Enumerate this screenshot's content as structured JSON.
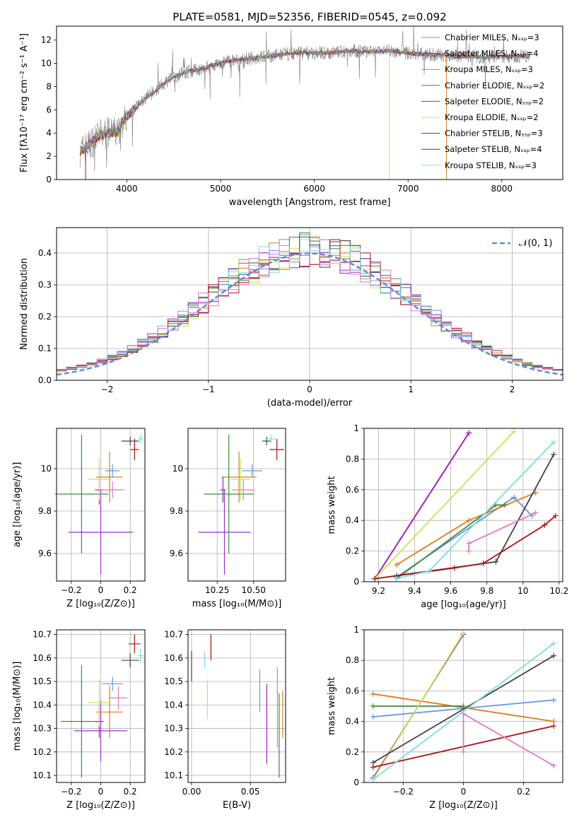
{
  "title": "PLATE=0581, MJD=52356, FIBERID=0545, z=0.092",
  "colors": {
    "Chabrier MILES": "#6495ed",
    "Salpeter MILES": "#9932cc",
    "Kroupa MILES": "#e07b1c",
    "Chabrier ELODIE": "#3c8c3c",
    "Salpeter ELODIE": "#a020c0",
    "Kroupa ELODIE": "#c8e650",
    "Chabrier STELIB": "#444444",
    "Salpeter STELIB": "#b01010",
    "Kroupa STELIB": "#7fdbe0",
    "data": "#808080",
    "pink": "#e377c2",
    "normal": "#5b8ddb"
  },
  "chart_data": [
    {
      "id": "spectrum",
      "type": "line",
      "xlabel": "wavelength [Angstrom, rest frame]",
      "ylabel": "Flux [fλ10⁻¹⁷ erg cm⁻² s⁻¹ A⁻¹]",
      "xlim": [
        3250,
        8650
      ],
      "ylim": [
        0,
        13.2
      ],
      "xticks": [
        4000,
        5000,
        6000,
        7000,
        8000
      ],
      "yticks": [
        0,
        2,
        4,
        6,
        8,
        10,
        12
      ],
      "legend": [
        "Chabrier MILES, Nₛₛₚ=3",
        "Salpeter MILES, Nₛₛₚ=4",
        "Kroupa MILES, Nₛₛₚ=3",
        "Chabrier ELODIE, Nₛₛₚ=2",
        "Salpeter ELODIE, Nₛₛₚ=2",
        "Kroupa ELODIE, Nₛₛₚ=2",
        "Chabrier STELIB, Nₛₛₚ=3",
        "Salpeter STELIB, Nₛₛₚ=4",
        "Kroupa STELIB, Nₛₛₚ=3"
      ],
      "legend_loc": "right",
      "envelope": [
        [
          3500,
          2.4
        ],
        [
          3600,
          3.0
        ],
        [
          3700,
          3.8
        ],
        [
          3800,
          4.0
        ],
        [
          3900,
          4.1
        ],
        [
          4000,
          5.5
        ],
        [
          4100,
          6.2
        ],
        [
          4200,
          7.0
        ],
        [
          4300,
          7.6
        ],
        [
          4400,
          8.3
        ],
        [
          4500,
          8.8
        ],
        [
          4600,
          9.2
        ],
        [
          4700,
          9.4
        ],
        [
          4800,
          9.5
        ],
        [
          4900,
          9.8
        ],
        [
          5000,
          10.0
        ],
        [
          5100,
          10.2
        ],
        [
          5200,
          10.3
        ],
        [
          5300,
          10.4
        ],
        [
          5400,
          10.5
        ],
        [
          5500,
          10.6
        ],
        [
          5600,
          10.7
        ],
        [
          5700,
          10.8
        ],
        [
          5800,
          10.9
        ],
        [
          5900,
          10.9
        ],
        [
          6000,
          10.9
        ],
        [
          6100,
          10.9
        ],
        [
          6200,
          10.9
        ],
        [
          6300,
          11.0
        ],
        [
          6400,
          11.1
        ],
        [
          6500,
          11.0
        ],
        [
          6600,
          11.0
        ],
        [
          6700,
          11.0
        ],
        [
          6800,
          11.1
        ],
        [
          6900,
          11.0
        ],
        [
          7000,
          10.9
        ],
        [
          7100,
          10.8
        ],
        [
          7200,
          10.8
        ],
        [
          7300,
          10.7
        ],
        [
          7400,
          10.7
        ],
        [
          7500,
          10.6
        ],
        [
          7600,
          10.6
        ],
        [
          7700,
          10.6
        ],
        [
          7800,
          10.5
        ],
        [
          7900,
          10.6
        ],
        [
          8000,
          10.6
        ],
        [
          8100,
          10.6
        ],
        [
          8200,
          10.6
        ],
        [
          8300,
          10.6
        ]
      ]
    },
    {
      "id": "residuals",
      "type": "line",
      "xlabel": "(data-model)/error",
      "ylabel": "Normed distribution",
      "xlim": [
        -2.5,
        2.5
      ],
      "ylim": [
        0,
        0.48
      ],
      "xticks": [
        -2,
        -1,
        0,
        1,
        2
      ],
      "yticks": [
        0.0,
        0.1,
        0.2,
        0.3,
        0.4
      ],
      "series": [
        {
          "name": "𝒩(0, 1)",
          "style": "dashed"
        }
      ],
      "legend_loc": "upper right"
    },
    {
      "id": "age_vs_Z",
      "type": "scatter",
      "xlabel": "Z [log₁₀(Z/Z⊙)]",
      "ylabel": "age  [log₁₀(age/yr)]",
      "xlim": [
        -0.3,
        0.3
      ],
      "ylim": [
        9.47,
        10.19
      ],
      "xticks": [
        -0.2,
        0.0,
        0.2
      ],
      "yticks": [
        9.6,
        9.8,
        10.0
      ],
      "points": [
        {
          "m": "Chabrier MILES",
          "x": 0.08,
          "y": 9.99,
          "xe": 0.05,
          "ye": 0.03
        },
        {
          "m": "Salpeter MILES",
          "x": 0.0,
          "y": 9.7,
          "xe": 0.22,
          "ye": 0.2
        },
        {
          "m": "Kroupa MILES",
          "x": 0.06,
          "y": 9.96,
          "xe": 0.09,
          "ye": 0.12
        },
        {
          "m": "Chabrier ELODIE",
          "x": -0.13,
          "y": 9.88,
          "xe": 0.18,
          "ye": 0.28
        },
        {
          "m": "Salpeter ELODIE",
          "x": -0.01,
          "y": 9.9,
          "xe": 0.03,
          "ye": 0.07
        },
        {
          "m": "Kroupa ELODIE",
          "x": -0.01,
          "y": 9.95,
          "xe": 0.08,
          "ye": 0.1
        },
        {
          "m": "Chabrier STELIB",
          "x": 0.2,
          "y": 10.13,
          "xe": 0.06,
          "ye": 0.02
        },
        {
          "m": "Salpeter STELIB",
          "x": 0.23,
          "y": 10.09,
          "xe": 0.03,
          "ye": 0.05
        },
        {
          "m": "Kroupa STELIB",
          "x": 0.27,
          "y": 10.14,
          "xe": 0.02,
          "ye": 0.02
        },
        {
          "m": "pink",
          "x": 0.08,
          "y": 9.9,
          "xe": 0.08,
          "ye": 0.04
        }
      ]
    },
    {
      "id": "age_vs_mass",
      "type": "scatter",
      "xlabel": "mass [log₁₀(M/M⊙)]",
      "ylabel": "",
      "xlim": [
        10.05,
        10.72
      ],
      "ylim": [
        9.47,
        10.19
      ],
      "xticks": [
        10.25,
        10.5
      ],
      "xticklabels": [
        "10.25",
        "10.50"
      ],
      "yticks": [
        9.6,
        9.8,
        10.0
      ],
      "points": [
        {
          "m": "Chabrier MILES",
          "x": 10.49,
          "y": 9.99,
          "xe": 0.07,
          "ye": 0.03
        },
        {
          "m": "Salpeter MILES",
          "x": 10.3,
          "y": 9.7,
          "xe": 0.18,
          "ye": 0.2
        },
        {
          "m": "Kroupa MILES",
          "x": 10.4,
          "y": 9.96,
          "xe": 0.12,
          "ye": 0.12
        },
        {
          "m": "Chabrier ELODIE",
          "x": 10.33,
          "y": 9.88,
          "xe": 0.17,
          "ye": 0.28
        },
        {
          "m": "Salpeter ELODIE",
          "x": 10.29,
          "y": 9.9,
          "xe": 0.02,
          "ye": 0.06
        },
        {
          "m": "Kroupa ELODIE",
          "x": 10.41,
          "y": 9.95,
          "xe": 0.07,
          "ye": 0.1
        },
        {
          "m": "Chabrier STELIB",
          "x": 10.59,
          "y": 10.13,
          "xe": 0.03,
          "ye": 0.02
        },
        {
          "m": "Salpeter STELIB",
          "x": 10.66,
          "y": 10.09,
          "xe": 0.05,
          "ye": 0.05
        },
        {
          "m": "Kroupa STELIB",
          "x": 10.62,
          "y": 10.14,
          "xe": 0.04,
          "ye": 0.02
        },
        {
          "m": "pink",
          "x": 10.43,
          "y": 9.9,
          "xe": 0.08,
          "ye": 0.05
        }
      ]
    },
    {
      "id": "mass_weight_vs_age",
      "type": "line",
      "xlabel": "age  [log₁₀(age/yr)]",
      "ylabel": "mass weight",
      "xlim": [
        9.12,
        10.22
      ],
      "ylim": [
        0,
        1.0
      ],
      "xticks": [
        9.2,
        9.4,
        9.6,
        9.8,
        10.0,
        10.2
      ],
      "yticks": [
        0.0,
        0.2,
        0.4,
        0.6,
        0.8,
        1.0
      ],
      "series": [
        {
          "m": "Chabrier MILES",
          "pts": [
            [
              9.3,
              0.03
            ],
            [
              9.95,
              0.55
            ],
            [
              10.05,
              0.43
            ]
          ]
        },
        {
          "m": "Salpeter MILES",
          "pts": [
            [
              9.18,
              0.02
            ],
            [
              9.7,
              0.97
            ]
          ]
        },
        {
          "m": "Kroupa MILES",
          "pts": [
            [
              9.3,
              0.11
            ],
            [
              9.7,
              0.4
            ],
            [
              10.07,
              0.58
            ]
          ]
        },
        {
          "m": "Chabrier ELODIE",
          "pts": [
            [
              9.3,
              0.02
            ],
            [
              9.85,
              0.5
            ],
            [
              9.9,
              0.5
            ]
          ]
        },
        {
          "m": "Salpeter ELODIE",
          "pts": [
            [
              9.18,
              0.02
            ],
            [
              9.7,
              0.97
            ]
          ]
        },
        {
          "m": "Kroupa ELODIE",
          "pts": [
            [
              9.18,
              0.02
            ],
            [
              9.95,
              0.98
            ]
          ]
        },
        {
          "m": "Chabrier STELIB",
          "pts": [
            [
              9.3,
              0.04
            ],
            [
              9.85,
              0.13
            ],
            [
              10.17,
              0.83
            ]
          ]
        },
        {
          "m": "Salpeter STELIB",
          "pts": [
            [
              9.18,
              0.02
            ],
            [
              9.62,
              0.09
            ],
            [
              9.78,
              0.12
            ],
            [
              10.12,
              0.37
            ],
            [
              10.18,
              0.43
            ]
          ]
        },
        {
          "m": "Kroupa STELIB",
          "pts": [
            [
              9.3,
              0.02
            ],
            [
              9.48,
              0.07
            ],
            [
              10.17,
              0.91
            ]
          ]
        },
        {
          "m": "pink",
          "pts": [
            [
              9.7,
              0.2
            ],
            [
              9.7,
              0.25
            ],
            [
              10.07,
              0.45
            ]
          ]
        }
      ]
    },
    {
      "id": "mass_vs_Z",
      "type": "scatter",
      "xlabel": "Z [log₁₀(Z/Z⊙)]",
      "ylabel": "mass [log₁₀(M/M⊙)]",
      "xlim": [
        -0.3,
        0.3
      ],
      "ylim": [
        10.07,
        10.72
      ],
      "xticks": [
        -0.2,
        0.0,
        0.2
      ],
      "yticks": [
        10.1,
        10.2,
        10.3,
        10.4,
        10.5,
        10.6,
        10.7
      ],
      "points": [
        {
          "m": "Chabrier MILES",
          "x": 0.08,
          "y": 10.49,
          "xe": 0.07,
          "ye": 0.03
        },
        {
          "m": "Salpeter MILES",
          "x": 0.0,
          "y": 10.29,
          "xe": 0.18,
          "ye": 0.13
        },
        {
          "m": "Kroupa MILES",
          "x": 0.06,
          "y": 10.37,
          "xe": 0.09,
          "ye": 0.11
        },
        {
          "m": "Chabrier ELODIE",
          "x": -0.13,
          "y": 10.33,
          "xe": 0.14,
          "ye": 0.24
        },
        {
          "m": "Salpeter ELODIE",
          "x": -0.01,
          "y": 10.33,
          "xe": 0.03,
          "ye": 0.07
        },
        {
          "m": "Kroupa ELODIE",
          "x": -0.01,
          "y": 10.41,
          "xe": 0.08,
          "ye": 0.1
        },
        {
          "m": "Chabrier STELIB",
          "x": 0.2,
          "y": 10.59,
          "xe": 0.06,
          "ye": 0.03
        },
        {
          "m": "Salpeter STELIB",
          "x": 0.23,
          "y": 10.66,
          "xe": 0.04,
          "ye": 0.04
        },
        {
          "m": "Kroupa STELIB",
          "x": 0.27,
          "y": 10.61,
          "xe": 0.02,
          "ye": 0.03
        },
        {
          "m": "pink",
          "x": 0.12,
          "y": 10.43,
          "xe": 0.06,
          "ye": 0.05
        }
      ]
    },
    {
      "id": "mass_vs_EBV",
      "type": "scatter",
      "xlabel": "E(B-V)",
      "ylabel": "",
      "xlim": [
        -0.003,
        0.08
      ],
      "ylim": [
        10.07,
        10.72
      ],
      "xticks": [
        0.0,
        0.05
      ],
      "xticklabels": [
        "0.00",
        "0.05"
      ],
      "yticks": [
        10.1,
        10.2,
        10.3,
        10.4,
        10.5,
        10.6,
        10.7
      ],
      "points": [
        {
          "m": "Chabrier STELIB",
          "x": 0.0,
          "y": 10.565,
          "ye": 0.065
        },
        {
          "m": "Kroupa STELIB",
          "x": 0.011,
          "y": 10.595,
          "ye": 0.035
        },
        {
          "m": "Salpeter STELIB",
          "x": 0.0165,
          "y": 10.645,
          "ye": 0.055
        },
        {
          "m": "Kroupa ELODIE",
          "x": 0.0135,
          "y": 10.425,
          "ye": 0.085
        },
        {
          "m": "Chabrier MILES",
          "x": 0.058,
          "y": 10.46,
          "ye": 0.09
        },
        {
          "m": "Salpeter ELODIE",
          "x": 0.064,
          "y": 10.32,
          "ye": 0.17
        },
        {
          "m": "pink",
          "x": 0.073,
          "y": 10.39,
          "ye": 0.17
        },
        {
          "m": "Chabrier ELODIE",
          "x": 0.0745,
          "y": 10.27,
          "ye": 0.18
        },
        {
          "m": "Kroupa MILES",
          "x": 0.0775,
          "y": 10.36,
          "ye": 0.1
        }
      ]
    },
    {
      "id": "mass_weight_vs_Z",
      "type": "line",
      "xlabel": "Z [log₁₀(Z/Z⊙)]",
      "ylabel": "mass weight",
      "xlim": [
        -0.33,
        0.33
      ],
      "ylim": [
        0,
        1.0
      ],
      "xticks": [
        -0.2,
        0.0,
        0.2
      ],
      "yticks": [
        0.0,
        0.2,
        0.4,
        0.6,
        0.8,
        1.0
      ],
      "series": [
        {
          "m": "Chabrier MILES",
          "pts": [
            [
              -0.3,
              0.43
            ],
            [
              0.3,
              0.54
            ]
          ]
        },
        {
          "m": "Salpeter MILES",
          "pts": [
            [
              -0.3,
              0.03
            ],
            [
              0.0,
              0.97
            ]
          ]
        },
        {
          "m": "Kroupa MILES",
          "pts": [
            [
              -0.3,
              0.58
            ],
            [
              0.3,
              0.4
            ]
          ]
        },
        {
          "m": "Chabrier ELODIE",
          "pts": [
            [
              -0.3,
              0.5
            ],
            [
              0.0,
              0.5
            ]
          ]
        },
        {
          "m": "Kroupa ELODIE",
          "pts": [
            [
              -0.3,
              0.02
            ],
            [
              0.0,
              0.98
            ]
          ]
        },
        {
          "m": "Chabrier STELIB",
          "pts": [
            [
              -0.3,
              0.13
            ],
            [
              0.3,
              0.83
            ]
          ]
        },
        {
          "m": "Salpeter STELIB",
          "pts": [
            [
              -0.3,
              0.1
            ],
            [
              0.3,
              0.37
            ]
          ]
        },
        {
          "m": "Kroupa STELIB",
          "pts": [
            [
              -0.3,
              0.02
            ],
            [
              0.3,
              0.91
            ]
          ]
        },
        {
          "m": "pink",
          "pts": [
            [
              0.0,
              0.2
            ],
            [
              0.0,
              0.45
            ],
            [
              0.3,
              0.11
            ]
          ]
        }
      ]
    }
  ]
}
